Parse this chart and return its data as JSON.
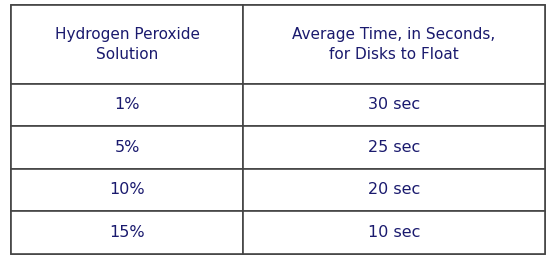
{
  "col1_header": "Hydrogen Peroxide\nSolution",
  "col2_header": "Average Time, in Seconds,\nfor Disks to Float",
  "rows": [
    [
      "1%",
      "30 sec"
    ],
    [
      "5%",
      "25 sec"
    ],
    [
      "10%",
      "20 sec"
    ],
    [
      "15%",
      "10 sec"
    ]
  ],
  "background_color": "#ffffff",
  "border_color": "#444444",
  "text_color": "#1a1a6e",
  "header_fontsize": 11,
  "cell_fontsize": 11.5,
  "fig_width": 5.56,
  "fig_height": 2.59,
  "dpi": 100
}
